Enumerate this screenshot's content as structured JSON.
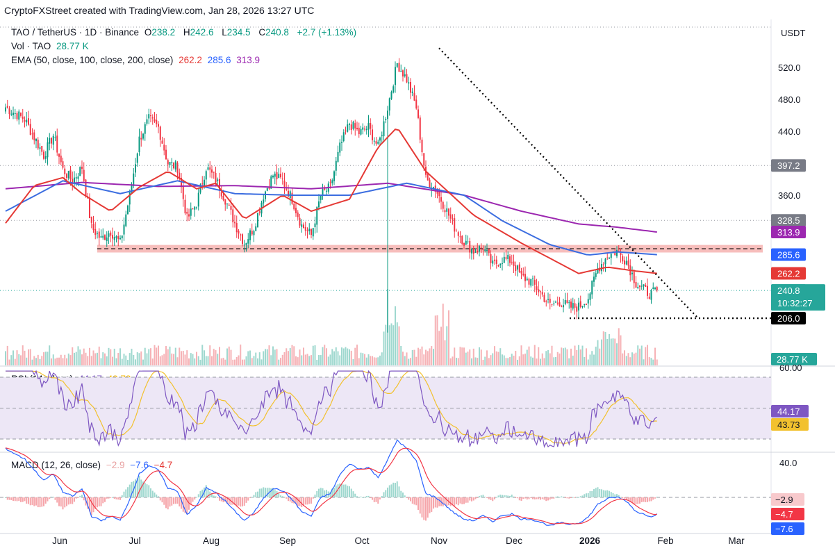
{
  "header": "CryptoFXStreet created with TradingView.com, Jan 28, 2026 13:27 UTC",
  "legend": {
    "symbol": "TAO / TetherUS · 1D · Binance",
    "o_label": "O",
    "o_value": "238.2",
    "h_label": "H",
    "h_value": "242.6",
    "l_label": "L",
    "l_value": "234.5",
    "c_label": "C",
    "c_value": "240.8",
    "change": "+2.7 (+1.13%)",
    "vol_label": "Vol · TAO",
    "vol_value": "28.77 K",
    "ema_label": "EMA (50, close, 100, close, 200, close)",
    "ema50": "262.2",
    "ema100": "285.6",
    "ema200": "313.9",
    "rsi_label": "RSI (14, close)",
    "rsi_value": "44.17",
    "rsi_ma": "43.73",
    "macd_label": "MACD (12, 26, close)",
    "macd_hist": "−2.9",
    "macd_line": "−7.6",
    "macd_signal": "−4.7"
  },
  "colors": {
    "up": "#089981",
    "down": "#f23645",
    "ema50": "#e53935",
    "ema100": "#3b6de0",
    "ema200": "#9c27b0",
    "rsi": "#7e57c2",
    "rsi_ma": "#f2c12e",
    "macd": "#2962ff",
    "signal": "#f23645",
    "zone": "#f4a3a0",
    "rsi_band": "#ede7f6"
  },
  "chart_data": {
    "type": "candlestick",
    "currency_label": "USDT",
    "y_ticks": [
      "520.0",
      "480.0",
      "440.0",
      "360.0"
    ],
    "y_tick_values": [
      520,
      480,
      440,
      360
    ],
    "x_tick_labels": [
      "Jun",
      "Jul",
      "Aug",
      "Sep",
      "Oct",
      "Nov",
      "Dec",
      "2026",
      "Feb",
      "Mar"
    ],
    "price_labels": [
      {
        "text": "397.2",
        "value": 397.2,
        "color": "#787b86"
      },
      {
        "text": "328.5",
        "value": 328.5,
        "color": "#787b86"
      },
      {
        "text": "313.9",
        "value": 313.9,
        "color": "#9c27b0"
      },
      {
        "text": "285.6",
        "value": 285.6,
        "color": "#2962ff"
      },
      {
        "text": "262.2",
        "value": 262.2,
        "color": "#e53935"
      },
      {
        "text": "240.8",
        "value": 240.8,
        "color": "#26a69a"
      },
      {
        "text": "206.0",
        "value": 206.0,
        "color": "#000000"
      }
    ],
    "countdown": "10:32:27",
    "volume_label": "28.77 K",
    "rsi_axis_label": "60.00",
    "rsi_labels": [
      {
        "text": "44.17",
        "color": "#7e57c2"
      },
      {
        "text": "43.73",
        "color": "#f2c12e"
      }
    ],
    "macd_axis_label": "40.0",
    "macd_labels": [
      {
        "text": "−2.9",
        "color": "#f8c9cc",
        "textColor": "#131722"
      },
      {
        "text": "−4.7",
        "color": "#f23645",
        "textColor": "#ffffff"
      },
      {
        "text": "−7.6",
        "color": "#2962ff",
        "textColor": "#ffffff"
      }
    ],
    "close_anchors": [
      [
        0,
        470
      ],
      [
        10,
        455
      ],
      [
        20,
        410
      ],
      [
        25,
        435
      ],
      [
        30,
        392
      ],
      [
        35,
        378
      ],
      [
        40,
        395
      ],
      [
        45,
        320
      ],
      [
        50,
        305
      ],
      [
        55,
        315
      ],
      [
        60,
        300
      ],
      [
        65,
        360
      ],
      [
        70,
        430
      ],
      [
        75,
        455
      ],
      [
        80,
        445
      ],
      [
        85,
        400
      ],
      [
        90,
        395
      ],
      [
        95,
        330
      ],
      [
        100,
        350
      ],
      [
        105,
        395
      ],
      [
        110,
        380
      ],
      [
        115,
        355
      ],
      [
        120,
        325
      ],
      [
        125,
        300
      ],
      [
        130,
        320
      ],
      [
        135,
        360
      ],
      [
        140,
        385
      ],
      [
        145,
        378
      ],
      [
        150,
        355
      ],
      [
        155,
        322
      ],
      [
        160,
        310
      ],
      [
        165,
        360
      ],
      [
        170,
        370
      ],
      [
        175,
        420
      ],
      [
        180,
        450
      ],
      [
        185,
        438
      ],
      [
        190,
        445
      ],
      [
        195,
        420
      ],
      [
        200,
        470
      ],
      [
        205,
        525
      ],
      [
        210,
        505
      ],
      [
        215,
        470
      ],
      [
        220,
        380
      ],
      [
        225,
        368
      ],
      [
        230,
        345
      ],
      [
        235,
        320
      ],
      [
        240,
        302
      ],
      [
        245,
        290
      ],
      [
        250,
        295
      ],
      [
        255,
        272
      ],
      [
        260,
        280
      ],
      [
        265,
        278
      ],
      [
        270,
        258
      ],
      [
        275,
        252
      ],
      [
        280,
        238
      ],
      [
        285,
        222
      ],
      [
        290,
        227
      ],
      [
        295,
        220
      ],
      [
        300,
        220
      ],
      [
        305,
        232
      ],
      [
        310,
        268
      ],
      [
        315,
        284
      ],
      [
        320,
        290
      ],
      [
        325,
        278
      ],
      [
        330,
        250
      ],
      [
        335,
        240
      ],
      [
        338,
        236
      ],
      [
        341,
        240.8
      ]
    ],
    "ema50_anchors": [
      [
        0,
        325
      ],
      [
        15,
        372
      ],
      [
        30,
        382
      ],
      [
        40,
        362
      ],
      [
        55,
        340
      ],
      [
        70,
        370
      ],
      [
        85,
        390
      ],
      [
        100,
        368
      ],
      [
        110,
        375
      ],
      [
        125,
        330
      ],
      [
        145,
        360
      ],
      [
        160,
        340
      ],
      [
        180,
        355
      ],
      [
        195,
        420
      ],
      [
        205,
        445
      ],
      [
        220,
        390
      ],
      [
        245,
        335
      ],
      [
        270,
        300
      ],
      [
        300,
        262
      ],
      [
        315,
        270
      ],
      [
        330,
        265
      ],
      [
        341,
        262.2
      ]
    ],
    "ema100_anchors": [
      [
        0,
        340
      ],
      [
        30,
        378
      ],
      [
        60,
        362
      ],
      [
        90,
        378
      ],
      [
        120,
        362
      ],
      [
        150,
        360
      ],
      [
        180,
        360
      ],
      [
        210,
        375
      ],
      [
        240,
        360
      ],
      [
        260,
        328
      ],
      [
        285,
        298
      ],
      [
        305,
        285
      ],
      [
        320,
        289
      ],
      [
        341,
        285.6
      ]
    ],
    "ema200_anchors": [
      [
        0,
        368
      ],
      [
        40,
        376
      ],
      [
        80,
        371
      ],
      [
        120,
        372
      ],
      [
        160,
        368
      ],
      [
        200,
        375
      ],
      [
        240,
        360
      ],
      [
        270,
        340
      ],
      [
        300,
        324
      ],
      [
        320,
        320
      ],
      [
        341,
        313.9
      ]
    ],
    "resistance_zone": [
      290,
      296
    ],
    "resistance_line": 293,
    "support_line": 206.0,
    "trendline": [
      [
        229,
        545
      ],
      [
        359,
        206
      ]
    ]
  }
}
